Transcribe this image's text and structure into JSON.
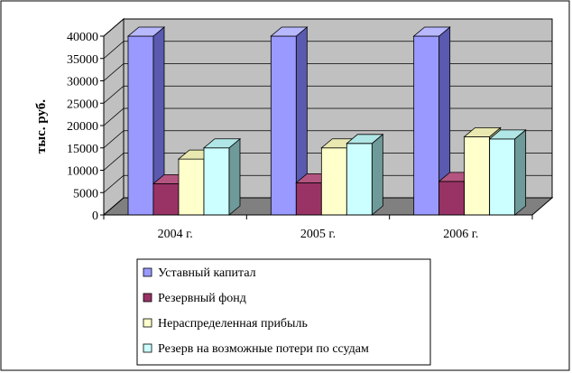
{
  "chart_data": {
    "type": "bar",
    "title": "",
    "xlabel": "",
    "ylabel": "тыс. руб.",
    "ylim": [
      0,
      40000
    ],
    "yticks": [
      0,
      5000,
      10000,
      15000,
      20000,
      25000,
      30000,
      35000,
      40000
    ],
    "grid": true,
    "three_d": true,
    "legend_position": "bottom-center",
    "categories": [
      "2004 г.",
      "2005 г.",
      "2006 г."
    ],
    "series": [
      {
        "name": "Уставный капитал",
        "values": [
          40000,
          40000,
          40000
        ],
        "color": "#9999ff",
        "side": "#5a5ab0",
        "top": "#b8b8ff"
      },
      {
        "name": "Резервный фонд",
        "values": [
          7000,
          7200,
          7500
        ],
        "color": "#993366",
        "side": "#66203f",
        "top": "#b35580"
      },
      {
        "name": "Нераспределенная прибыль",
        "values": [
          12500,
          15000,
          17500
        ],
        "color": "#ffffcc",
        "side": "#a8a87a",
        "top": "#e8e8b0"
      },
      {
        "name": "Резерв на возможные потери по ссудам",
        "values": [
          15000,
          16000,
          17000
        ],
        "color": "#ccffff",
        "side": "#6f9a9a",
        "top": "#b0e6e6"
      }
    ]
  },
  "colors": {
    "wall": "#c0c0c0",
    "floor": "#808080",
    "grid": "#000000"
  }
}
